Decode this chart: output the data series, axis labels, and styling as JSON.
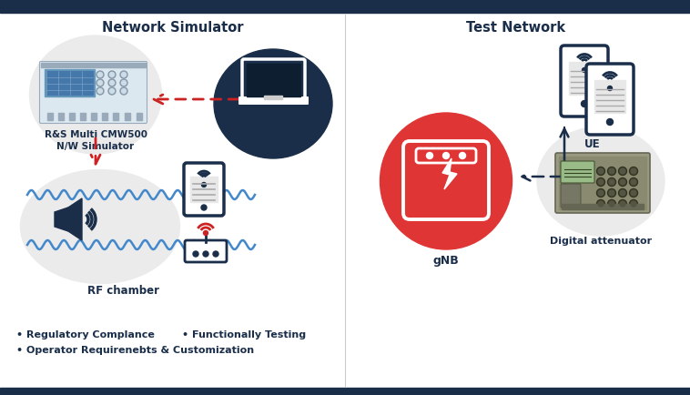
{
  "title_left": "Network Simulator",
  "title_right": "Test Network",
  "label_cmw": "R&S Multi CMW500\nN/W Simulator",
  "label_rf": "RF chamber",
  "label_gnb": "gNB",
  "label_ue": "UE",
  "label_da": "Digital attenuator",
  "bullet1": "• Regulatory Complance",
  "bullet2": "• Functionally Testing",
  "bullet3": "• Operator Requirenebts & Customization",
  "bg_color": "#ffffff",
  "border_color": "#1a2e4a",
  "title_color": "#1a2e4a",
  "circle_gray": "#ebebeb",
  "circle_dark": "#1a2e4a",
  "circle_red": "#e03535",
  "arrow_red": "#cc2222",
  "arrow_dark": "#1a2e4a",
  "wave_color": "#4488cc",
  "icon_color": "#1a2e4a",
  "bullet_color": "#1a2e4a"
}
